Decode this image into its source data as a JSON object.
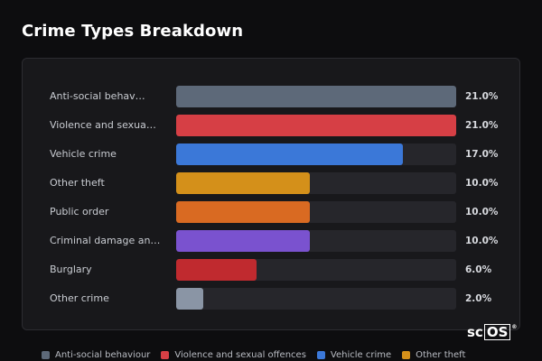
{
  "header": {
    "title": "Crime Types Breakdown"
  },
  "chart_data": {
    "type": "bar",
    "orientation": "horizontal",
    "title": "Crime Types Breakdown",
    "xlim": [
      0,
      21
    ],
    "categories": [
      "Anti-social behav…",
      "Violence and sexua…",
      "Vehicle crime",
      "Other theft",
      "Public order",
      "Criminal damage an…",
      "Burglary",
      "Other crime"
    ],
    "values": [
      21.0,
      21.0,
      17.0,
      10.0,
      10.0,
      10.0,
      6.0,
      2.0
    ],
    "value_labels": [
      "21.0%",
      "21.0%",
      "17.0%",
      "10.0%",
      "10.0%",
      "10.0%",
      "6.0%",
      "2.0%"
    ],
    "colors": [
      "#5d6979",
      "#d63f45",
      "#3b78d8",
      "#d4901a",
      "#d96a22",
      "#7a52cf",
      "#c02a2f",
      "#8a95a5"
    ],
    "legend": [
      {
        "name": "Anti-social behaviour",
        "color": "#5d6979"
      },
      {
        "name": "Violence and sexual offences",
        "color": "#d63f45"
      },
      {
        "name": "Vehicle crime",
        "color": "#3b78d8"
      },
      {
        "name": "Other theft",
        "color": "#d4901a"
      }
    ],
    "legend_position": "bottom",
    "grid": false
  },
  "branding": {
    "logo_text_a": "sc",
    "logo_text_b": "OS",
    "logo_mark": "®"
  }
}
